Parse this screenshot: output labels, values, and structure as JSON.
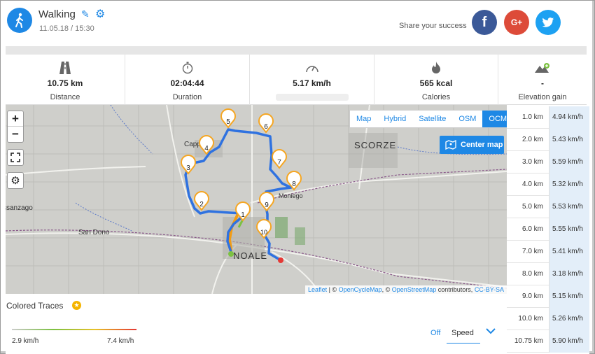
{
  "header": {
    "activity": "Walking",
    "date": "11.05.18 / 15:30",
    "share_label": "Share your success"
  },
  "social": {
    "facebook": "f",
    "google": "G+",
    "twitter": "t"
  },
  "stats": [
    {
      "icon": "road-icon",
      "value": "10.75 km",
      "label": "Distance"
    },
    {
      "icon": "stopwatch-icon",
      "value": "02:04:44",
      "label": "Duration"
    },
    {
      "icon": "speedometer-icon",
      "value": "5.17 km/h",
      "label": ""
    },
    {
      "icon": "flame-icon",
      "value": "565 kcal",
      "label": "Calories"
    },
    {
      "icon": "mountain-icon",
      "value": "-",
      "label": "Elevation gain"
    }
  ],
  "map": {
    "zoom_in": "+",
    "zoom_out": "−",
    "layers": [
      "Map",
      "Hybrid",
      "Satellite",
      "OSM",
      "OCM"
    ],
    "active_layer": "OCM",
    "center_button": "Center map",
    "labels": {
      "capp": "Cappella",
      "scorze": "SCORZE",
      "sando": "San Dono",
      "ssanzago": "ssanzago",
      "noale": "NOALE",
      "moniego": "Moniego"
    },
    "attribution": {
      "leaflet": "Leaflet",
      "sep1": " | © ",
      "ocm": "OpenCycleMap",
      "sep2": ", © ",
      "osm": "OpenStreetMap",
      "contrib": " contributors, ",
      "license": "CC-BY-SA"
    },
    "markers": [
      "1",
      "2",
      "3",
      "4",
      "5",
      "6",
      "7",
      "8",
      "9",
      "10"
    ]
  },
  "splits": [
    {
      "dist": "1.0 km",
      "speed": "4.94 km/h"
    },
    {
      "dist": "2.0 km",
      "speed": "5.43 km/h"
    },
    {
      "dist": "3.0 km",
      "speed": "5.59 km/h"
    },
    {
      "dist": "4.0 km",
      "speed": "5.32 km/h"
    },
    {
      "dist": "5.0 km",
      "speed": "5.53 km/h"
    },
    {
      "dist": "6.0 km",
      "speed": "5.55 km/h"
    },
    {
      "dist": "7.0 km",
      "speed": "5.41 km/h"
    },
    {
      "dist": "8.0 km",
      "speed": "3.18 km/h"
    },
    {
      "dist": "9.0 km",
      "speed": "5.15 km/h"
    },
    {
      "dist": "10.0 km",
      "speed": "5.26 km/h"
    },
    {
      "dist": "10.75 km",
      "speed": "5.90 km/h"
    }
  ],
  "traces": {
    "title": "Colored Traces",
    "min": "2.9 km/h",
    "max": "7.4 km/h",
    "off": "Off",
    "selected": "Speed"
  },
  "colors": {
    "accent": "#1e88e5",
    "route": "#2f72e0",
    "marker": "#f5a623",
    "facebook": "#3b5998",
    "google": "#dd4b39",
    "twitter": "#1da1f2"
  }
}
